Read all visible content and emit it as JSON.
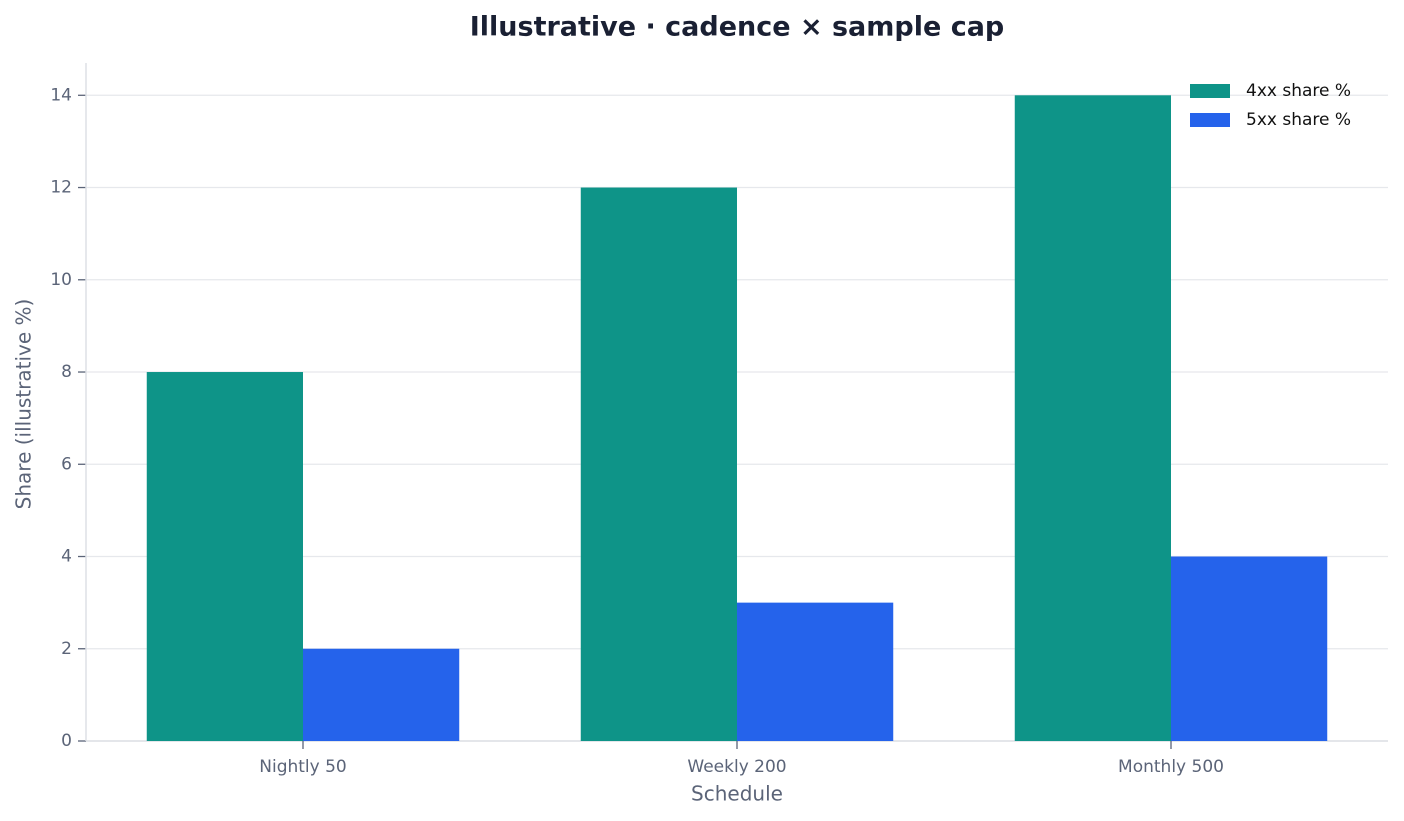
{
  "chart_data": {
    "type": "bar",
    "title": "Illustrative · cadence × sample cap",
    "x_label": "Schedule",
    "y_label": "Share (illustrative %)",
    "categories": [
      "Nightly 50",
      "Weekly 200",
      "Monthly 500"
    ],
    "series": [
      {
        "name": "4xx share %",
        "color": "#0e9488",
        "values": [
          8,
          12,
          14
        ]
      },
      {
        "name": "5xx share %",
        "color": "#2563eb",
        "values": [
          2,
          3,
          4
        ]
      }
    ],
    "ylim": [
      0,
      14.7
    ],
    "yticks": [
      0,
      2,
      4,
      6,
      8,
      10,
      12,
      14
    ],
    "grid": true,
    "legend": "upper-right"
  }
}
